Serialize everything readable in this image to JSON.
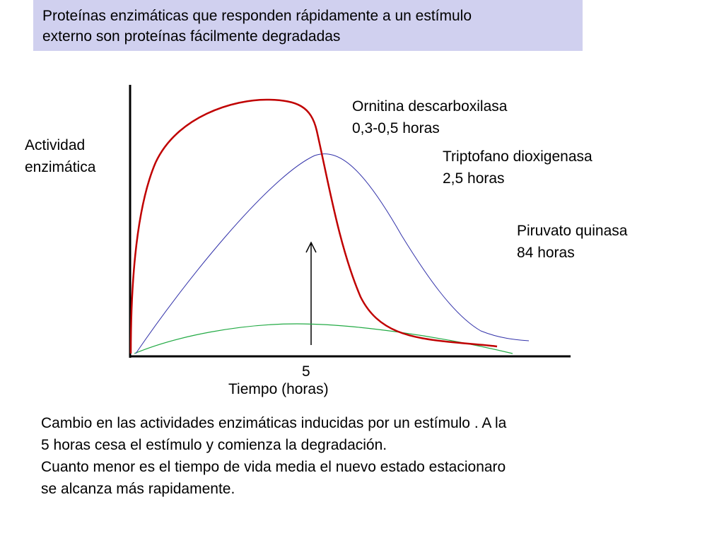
{
  "title": {
    "lines": [
      "Proteínas enzimáticas que responden rápidamente a un estímulo",
      "externo son proteínas fácilmente degradadas"
    ]
  },
  "y_axis_label": [
    "Actividad",
    "enzimática"
  ],
  "x_axis_label": "Tiempo (horas)",
  "x_tick": "5",
  "curves": [
    {
      "lines": [
        "Ornitina descarboxilasa",
        "0,3-0,5 horas"
      ],
      "color": "#c00000"
    },
    {
      "lines": [
        "Triptofano dioxigenasa",
        "2,5 horas"
      ],
      "color": "#3333aa"
    },
    {
      "lines": [
        "Piruvato quinasa",
        "84 horas"
      ],
      "color": "#22aa44"
    }
  ],
  "caption": {
    "lines": [
      "Cambio en las actividades enzimáticas inducidas por un estímulo . A la",
      "5 horas cesa el estímulo y comienza la degradación.",
      "Cuanto menor es el tiempo de vida media el nuevo estado estacionaro",
      "se alcanza más rapidamente."
    ]
  }
}
